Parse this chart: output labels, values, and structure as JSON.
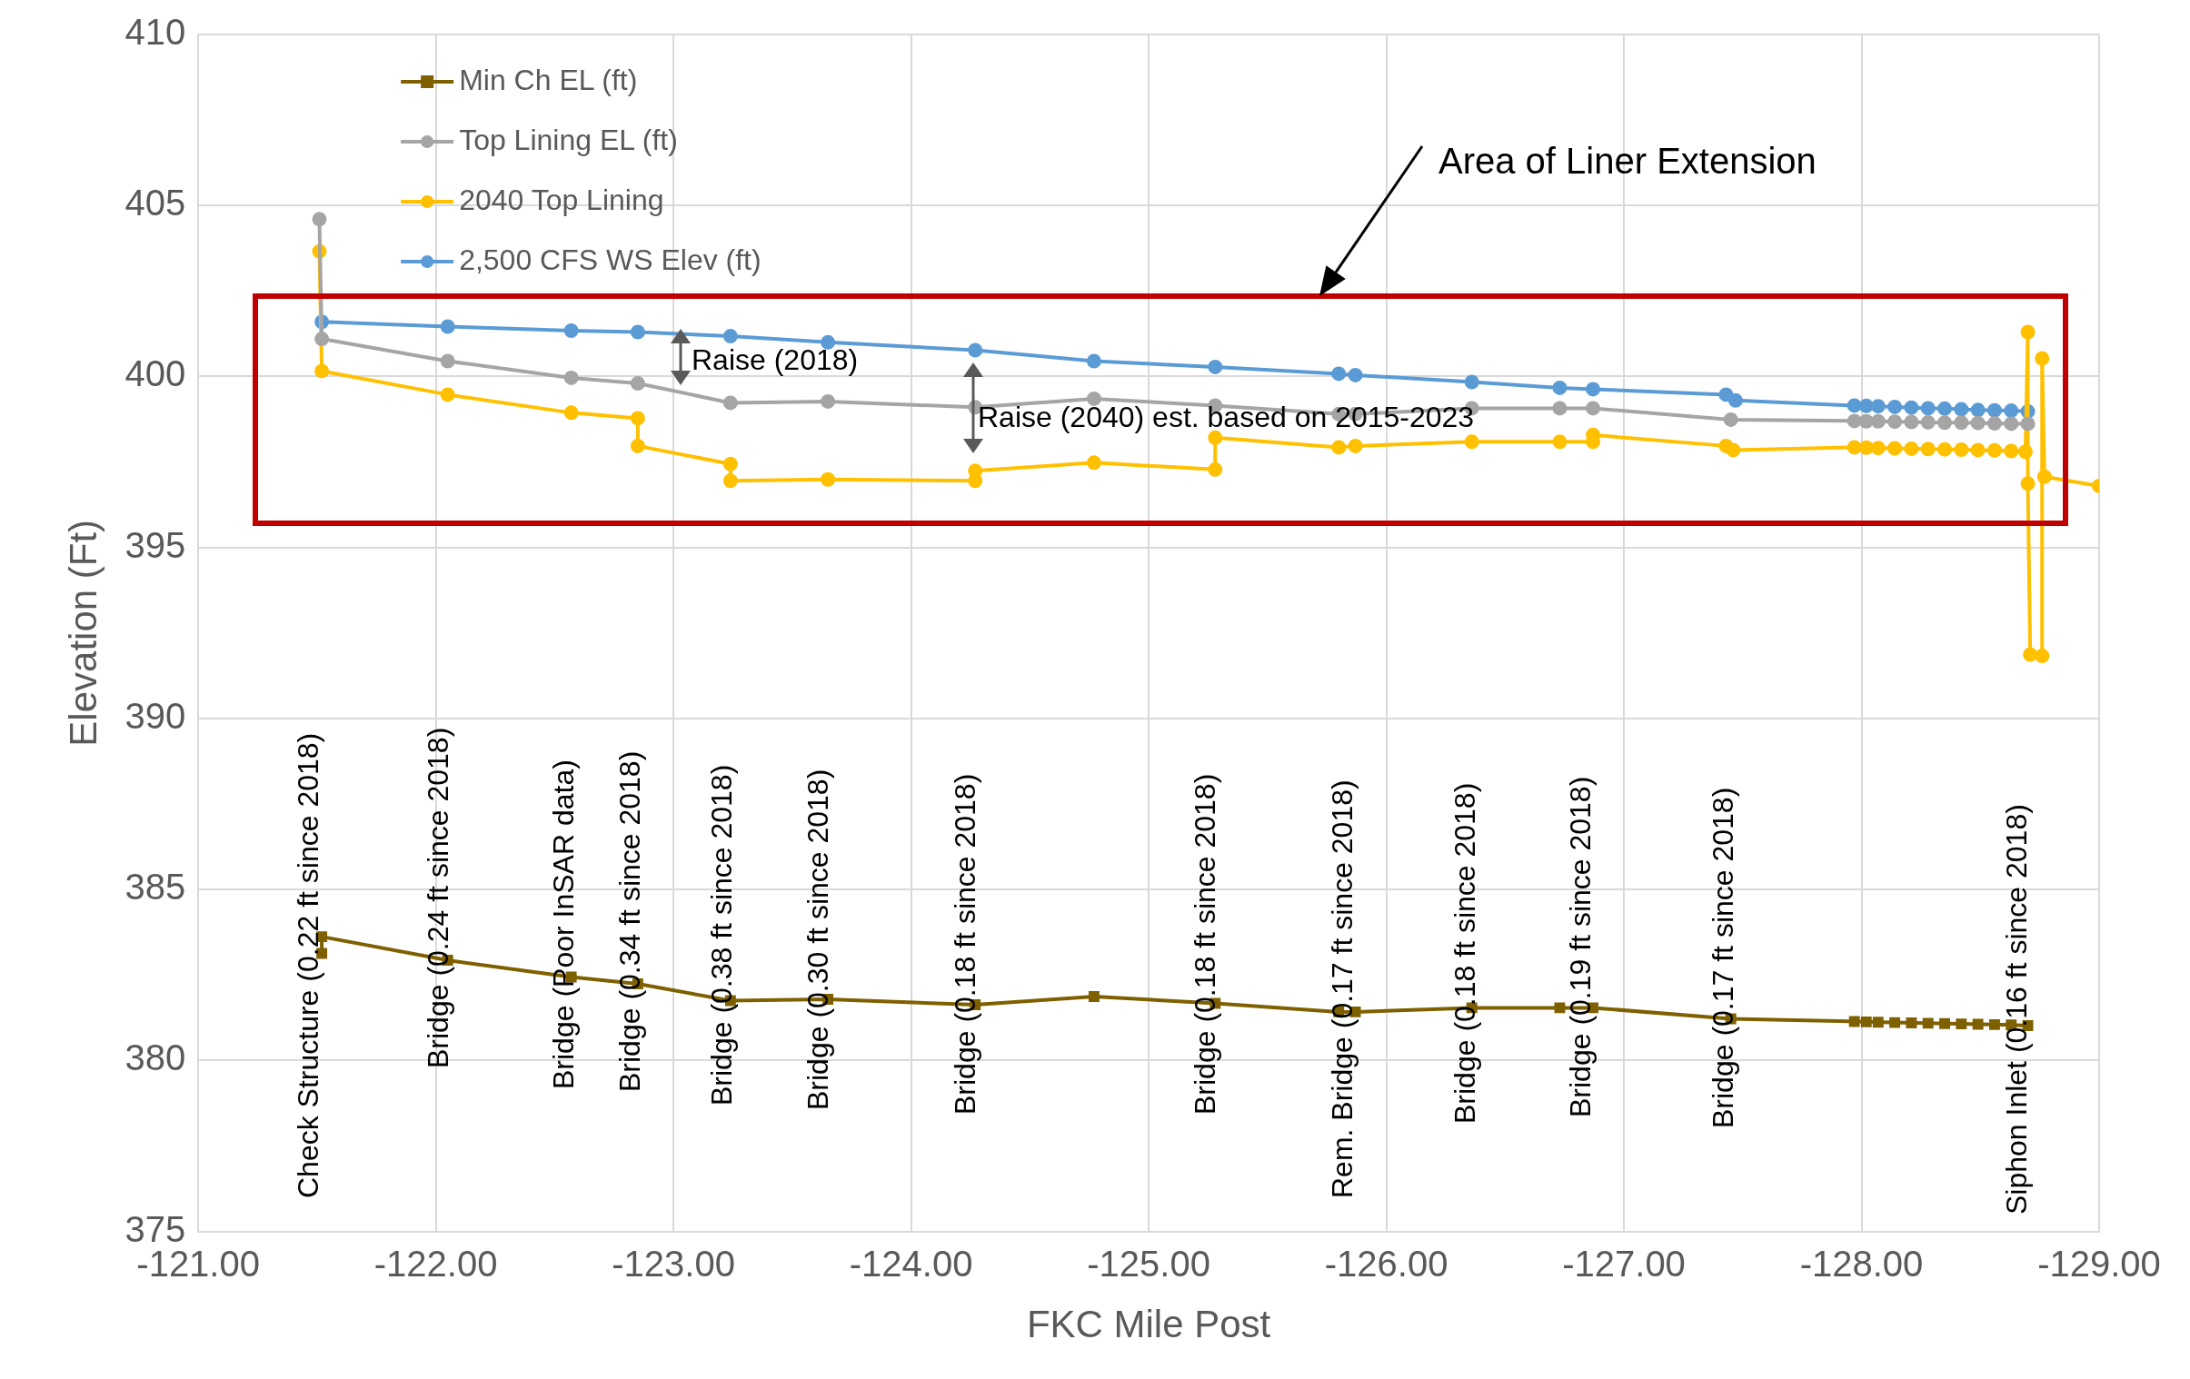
{
  "chart_data": {
    "type": "line",
    "xlabel": "FKC Mile Post",
    "ylabel": "Elevation (Ft)",
    "xlim": [
      -121,
      -129
    ],
    "ylim": [
      375,
      410
    ],
    "xticks": [
      {
        "value": -121,
        "label": "-121.00"
      },
      {
        "value": -122,
        "label": "-122.00"
      },
      {
        "value": -123,
        "label": "-123.00"
      },
      {
        "value": -124,
        "label": "-124.00"
      },
      {
        "value": -125,
        "label": "-125.00"
      },
      {
        "value": -126,
        "label": "-126.00"
      },
      {
        "value": -127,
        "label": "-127.00"
      },
      {
        "value": -128,
        "label": "-128.00"
      },
      {
        "value": -129,
        "label": "-129.00"
      }
    ],
    "yticks": [
      375,
      380,
      385,
      390,
      395,
      400,
      405,
      410
    ],
    "grid": true,
    "legend": "top left",
    "series": [
      {
        "name": "Min Ch EL (ft)",
        "color": "#7f6000",
        "marker": "square",
        "x": [
          -121.52,
          -121.52,
          -122.05,
          -122.57,
          -122.85,
          -123.24,
          -123.65,
          -124.27,
          -124.77,
          -125.28,
          -125.8,
          -125.87,
          -126.36,
          -126.73,
          -126.87,
          -127.45,
          -127.97,
          -128.02,
          -128.07,
          -128.14,
          -128.21,
          -128.28,
          -128.35,
          -128.42,
          -128.49,
          -128.56,
          -128.63,
          -128.7
        ],
        "values": [
          383.13,
          383.62,
          382.93,
          382.44,
          382.24,
          381.75,
          381.79,
          381.63,
          381.87,
          381.67,
          381.42,
          381.42,
          381.54,
          381.54,
          381.54,
          381.22,
          381.14,
          381.13,
          381.12,
          381.11,
          381.1,
          381.09,
          381.08,
          381.07,
          381.06,
          381.05,
          381.04,
          381.02
        ]
      },
      {
        "name": "Top Lining EL (ft)",
        "color": "#a5a5a5",
        "marker": "circle",
        "x": [
          -121.51,
          -121.52,
          -122.05,
          -122.57,
          -122.85,
          -123.24,
          -123.65,
          -124.27,
          -124.77,
          -125.28,
          -125.8,
          -125.87,
          -126.36,
          -126.73,
          -126.87,
          -127.45,
          -127.97,
          -128.02,
          -128.07,
          -128.14,
          -128.21,
          -128.28,
          -128.35,
          -128.42,
          -128.49,
          -128.56,
          -128.63,
          -128.7
        ],
        "values": [
          404.6,
          401.1,
          400.45,
          399.96,
          399.8,
          399.23,
          399.27,
          399.1,
          399.35,
          399.15,
          398.9,
          398.9,
          399.07,
          399.07,
          399.07,
          398.74,
          398.7,
          398.69,
          398.69,
          398.68,
          398.67,
          398.66,
          398.65,
          398.65,
          398.64,
          398.63,
          398.62,
          398.62
        ]
      },
      {
        "name": "2040 Top Lining",
        "color": "#ffc000",
        "marker": "circle",
        "x": [
          -121.51,
          -121.52,
          -122.05,
          -122.57,
          -122.85,
          -122.85,
          -123.24,
          -123.24,
          -123.65,
          -124.27,
          -124.27,
          -124.77,
          -125.28,
          -125.28,
          -125.8,
          -125.87,
          -126.36,
          -126.73,
          -126.87,
          -126.87,
          -127.43,
          -127.46,
          -127.97,
          -128.02,
          -128.07,
          -128.14,
          -128.21,
          -128.28,
          -128.35,
          -128.42,
          -128.49,
          -128.56,
          -128.63,
          -128.69,
          -128.7,
          -128.7,
          -128.71,
          -128.76,
          -128.76,
          -128.77,
          -129.0
        ],
        "values": [
          403.66,
          400.16,
          399.47,
          398.94,
          398.78,
          397.97,
          397.44,
          396.95,
          396.99,
          396.95,
          397.24,
          397.48,
          397.28,
          398.21,
          397.93,
          397.97,
          398.09,
          398.09,
          398.09,
          398.29,
          397.97,
          397.85,
          397.93,
          397.92,
          397.91,
          397.9,
          397.89,
          397.88,
          397.87,
          397.86,
          397.85,
          397.84,
          397.82,
          397.8,
          401.3,
          396.87,
          391.87,
          391.83,
          400.53,
          397.07,
          396.8
        ]
      },
      {
        "name": "2,500 CFS WS Elev (ft)",
        "color": "#5b9bd5",
        "marker": "circle",
        "x": [
          -121.52,
          -122.05,
          -122.57,
          -122.85,
          -123.24,
          -123.65,
          -124.27,
          -124.77,
          -125.28,
          -125.8,
          -125.87,
          -126.36,
          -126.73,
          -126.87,
          -127.43,
          -127.47,
          -127.97,
          -128.02,
          -128.07,
          -128.14,
          -128.21,
          -128.28,
          -128.35,
          -128.42,
          -128.49,
          -128.56,
          -128.63,
          -128.7
        ],
        "values": [
          401.6,
          401.46,
          401.34,
          401.3,
          401.18,
          401.0,
          400.77,
          400.45,
          400.28,
          400.08,
          400.04,
          399.84,
          399.67,
          399.63,
          399.47,
          399.3,
          399.15,
          399.14,
          399.13,
          399.11,
          399.09,
          399.07,
          399.06,
          399.04,
          399.02,
          399.01,
          399.0,
          398.98
        ]
      }
    ],
    "annotations": [
      "Area of Liner Extension",
      "Raise (2018)",
      "Raise (2040) est. based on 2015-2023",
      "Check Structure (0.22 ft since 2018)",
      "Bridge (0.24 ft since 2018)",
      "Bridge (Poor InSAR data)",
      "Bridge (0.34 ft since 2018)",
      "Bridge (0.38 ft since 2018)",
      "Bridge (0.30 ft since 2018)",
      "Bridge (0.18 ft since 2018)",
      "Bridge (0.18 ft since 2018)",
      "Rem. Bridge (0.17 ft since 2018)",
      "Bridge (0.18 ft since 2018)",
      "Bridge (0.19 ft since 2018)",
      "Bridge (0.17 ft since 2018)",
      "Siphon Inlet (0.16 ft since 2018)"
    ]
  }
}
